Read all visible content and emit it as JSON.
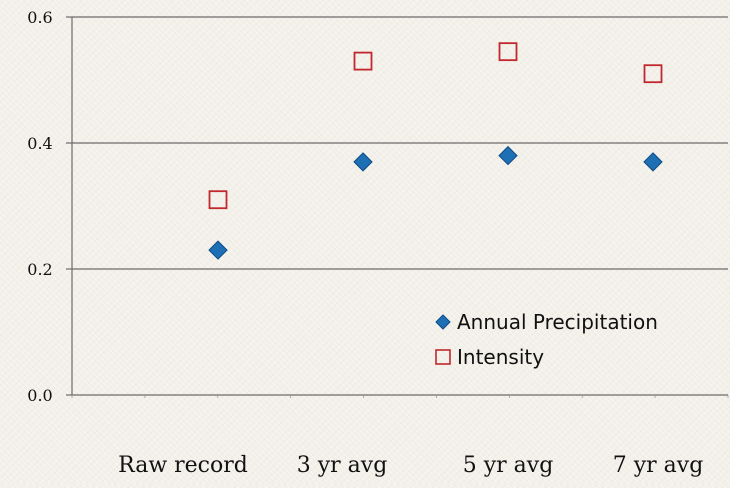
{
  "chart_data": {
    "type": "scatter",
    "categories": [
      "Raw record",
      "3 yr avg",
      "5 yr avg",
      "7 yr avg"
    ],
    "series": [
      {
        "name": "Annual Precipitation",
        "values": [
          0.23,
          0.37,
          0.38,
          0.37
        ],
        "marker": "diamond",
        "color": "#1f6fb5"
      },
      {
        "name": "Intensity",
        "values": [
          0.31,
          0.53,
          0.545,
          0.51
        ],
        "marker": "square-open",
        "color": "#c0282d"
      }
    ],
    "yticks": [
      "0.0",
      "0.2",
      "0.4",
      "0.6"
    ],
    "ylim": [
      0,
      0.6
    ],
    "grid": "horizontal",
    "legend": "bottom-right",
    "title": "",
    "xlabel": "",
    "ylabel": ""
  }
}
